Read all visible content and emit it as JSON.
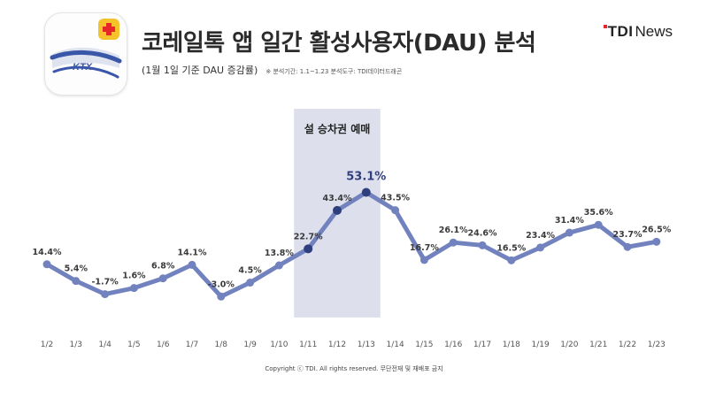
{
  "header": {
    "title": "코레일톡 앱 일간 활성사용자(DAU) 분석",
    "subtitle": "(1월 1일 기준 DAU 증감률)",
    "note": "※ 분석기간: 1.1~1.23 분석도구: TDI데이터드래곤",
    "brand_name": "TDI",
    "brand_suffix": "News",
    "app_icon_label": "KTX",
    "brand_color": "#e8262a"
  },
  "chart_data": {
    "type": "line",
    "categories": [
      "1/2",
      "1/3",
      "1/4",
      "1/5",
      "1/6",
      "1/7",
      "1/8",
      "1/9",
      "1/10",
      "1/11",
      "1/12",
      "1/13",
      "1/14",
      "1/15",
      "1/16",
      "1/17",
      "1/18",
      "1/19",
      "1/20",
      "1/21",
      "1/22",
      "1/23"
    ],
    "series": [
      {
        "values": [
          14.4,
          5.4,
          -1.7,
          1.6,
          6.8,
          14.1,
          -3.0,
          4.5,
          13.8,
          22.7,
          43.4,
          53.1,
          43.5,
          16.7,
          26.1,
          24.6,
          16.5,
          23.4,
          31.4,
          35.6,
          23.7,
          26.5
        ],
        "color": "#7182bf"
      }
    ],
    "data_labels": [
      "14.4%",
      "5.4%",
      "-1.7%",
      "1.6%",
      "6.8%",
      "14.1%",
      "-3.0%",
      "4.5%",
      "13.8%",
      "22.7%",
      "43.4%",
      "53.1%",
      "43.5%",
      "16.7%",
      "26.1%",
      "24.6%",
      "16.5%",
      "23.4%",
      "31.4%",
      "35.6%",
      "23.7%",
      "26.5%"
    ],
    "highlight": {
      "label": "설 승차권 예매",
      "from": "1/11",
      "to": "1/13",
      "color": "#dde0ec"
    },
    "emphasis_point": "1/13",
    "dark_marker_color": "#2f3f7d",
    "grid": false,
    "ylim": [
      -10,
      60
    ]
  },
  "footer": {
    "copyright": "Copyright ⓒ TDI. All rights reserved. 무단전재 및 재배포 금지"
  }
}
